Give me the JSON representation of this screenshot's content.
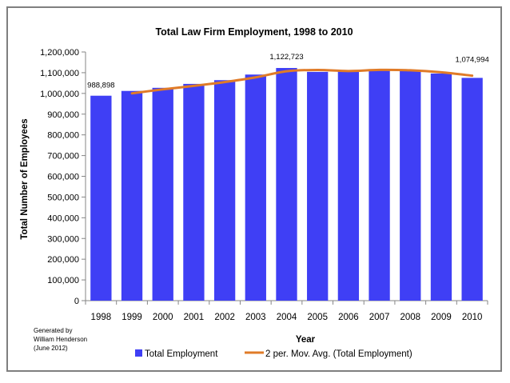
{
  "chart_data": {
    "type": "bar",
    "title": "Total  Law Firm Employment, 1998 to 2010",
    "xlabel": "Year",
    "ylabel": "Total Number of Employees",
    "ylim": [
      0,
      1200000
    ],
    "ytick_step": 100000,
    "ytick_labels": [
      "0",
      "100,000",
      "200,000",
      "300,000",
      "400,000",
      "500,000",
      "600,000",
      "700,000",
      "800,000",
      "900,000",
      "1,000,000",
      "1,100,000",
      "1,200,000"
    ],
    "categories": [
      "1998",
      "1999",
      "2000",
      "2001",
      "2002",
      "2003",
      "2004",
      "2005",
      "2006",
      "2007",
      "2008",
      "2009",
      "2010"
    ],
    "series": [
      {
        "name": "Total Employment",
        "type": "bar",
        "color": "#3f3ff5",
        "values": [
          988898,
          1012000,
          1027000,
          1046000,
          1064000,
          1091000,
          1122723,
          1104000,
          1112000,
          1115000,
          1108000,
          1096000,
          1074994
        ]
      },
      {
        "name": "2 per. Mov. Avg. (Total Employment)",
        "type": "line",
        "color": "#e07b28",
        "values": [
          null,
          1000449,
          1019500,
          1036500,
          1055000,
          1077500,
          1106862,
          1113362,
          1108000,
          1113500,
          1111500,
          1102000,
          1085497
        ]
      }
    ],
    "data_labels": [
      {
        "index": 0,
        "text": "988,898"
      },
      {
        "index": 6,
        "text": "1,122,723"
      },
      {
        "index": 12,
        "text": "1,074,994"
      }
    ],
    "legend": {
      "position": "bottom",
      "entries": [
        "Total Employment",
        "2 per. Mov. Avg. (Total Employment)"
      ]
    }
  },
  "credit": {
    "line1": "Generated by",
    "line2": "William Henderson",
    "line3": "(June 2012)"
  }
}
